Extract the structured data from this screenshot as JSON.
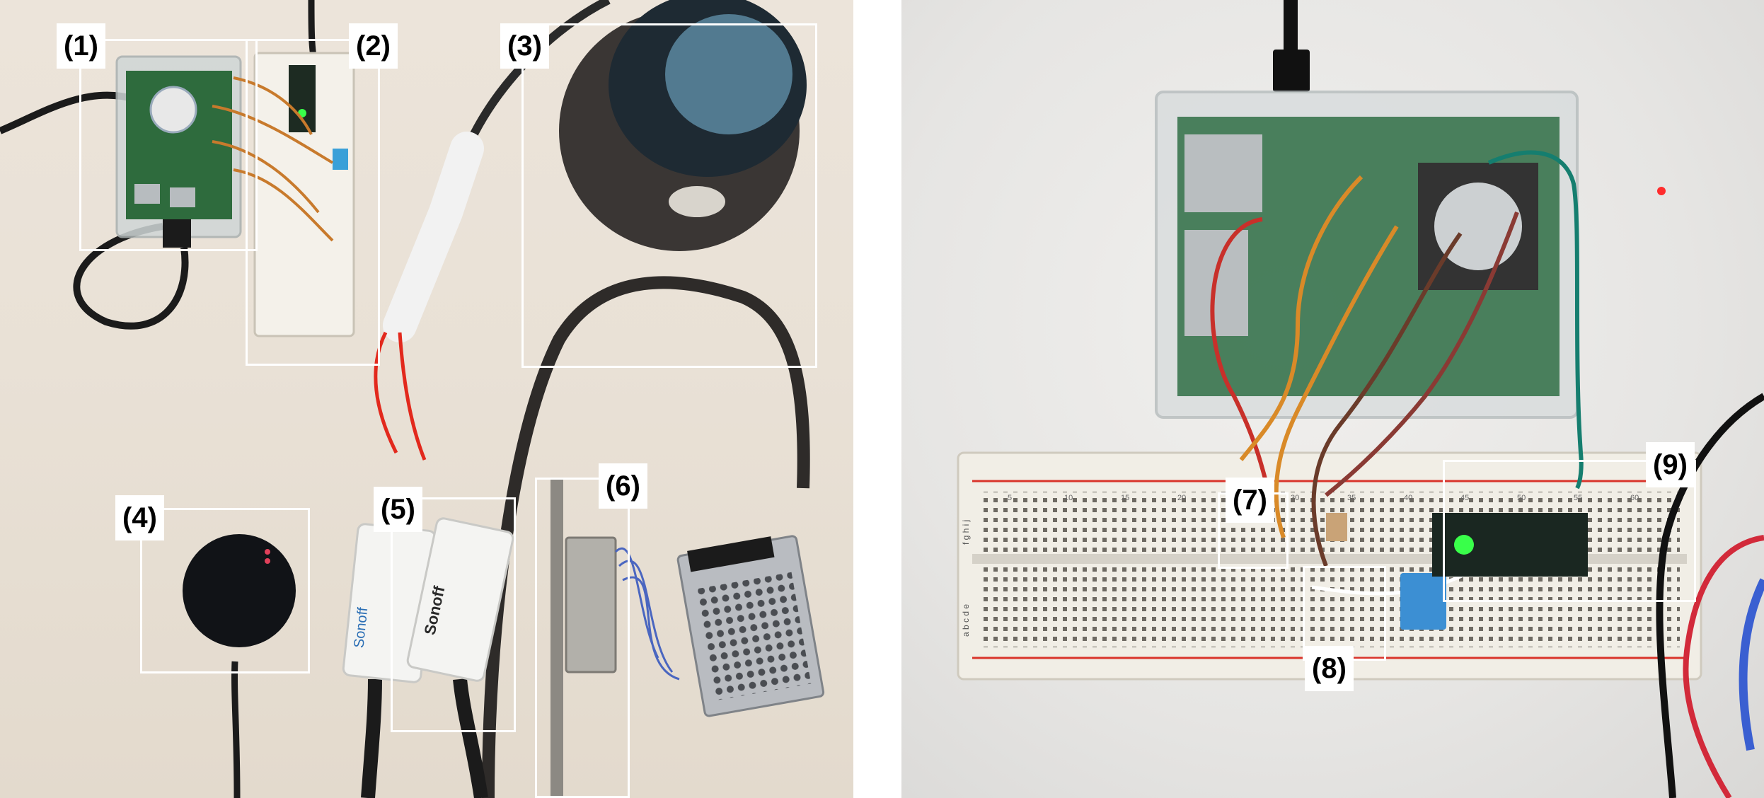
{
  "figure": {
    "left_panel": {
      "labels": [
        "(1)",
        "(2)",
        "(3)",
        "(4)",
        "(5)",
        "(6)"
      ],
      "sonoff_text": "Sonoff"
    },
    "right_panel": {
      "labels": [
        "(7)",
        "(8)",
        "(9)"
      ],
      "breadboard_row_letters": "a b c d e",
      "breadboard_row_letters_top": "f g h i j",
      "breadboard_numbers": [
        "5",
        "10",
        "15",
        "20",
        "25",
        "30",
        "35",
        "40",
        "45",
        "50",
        "55",
        "60"
      ]
    },
    "colors": {
      "label_background": "#ffffff",
      "box_stroke": "#ffffff",
      "breadboard_rail_red": "#d9342b",
      "led_green": "#39ff4a"
    }
  }
}
